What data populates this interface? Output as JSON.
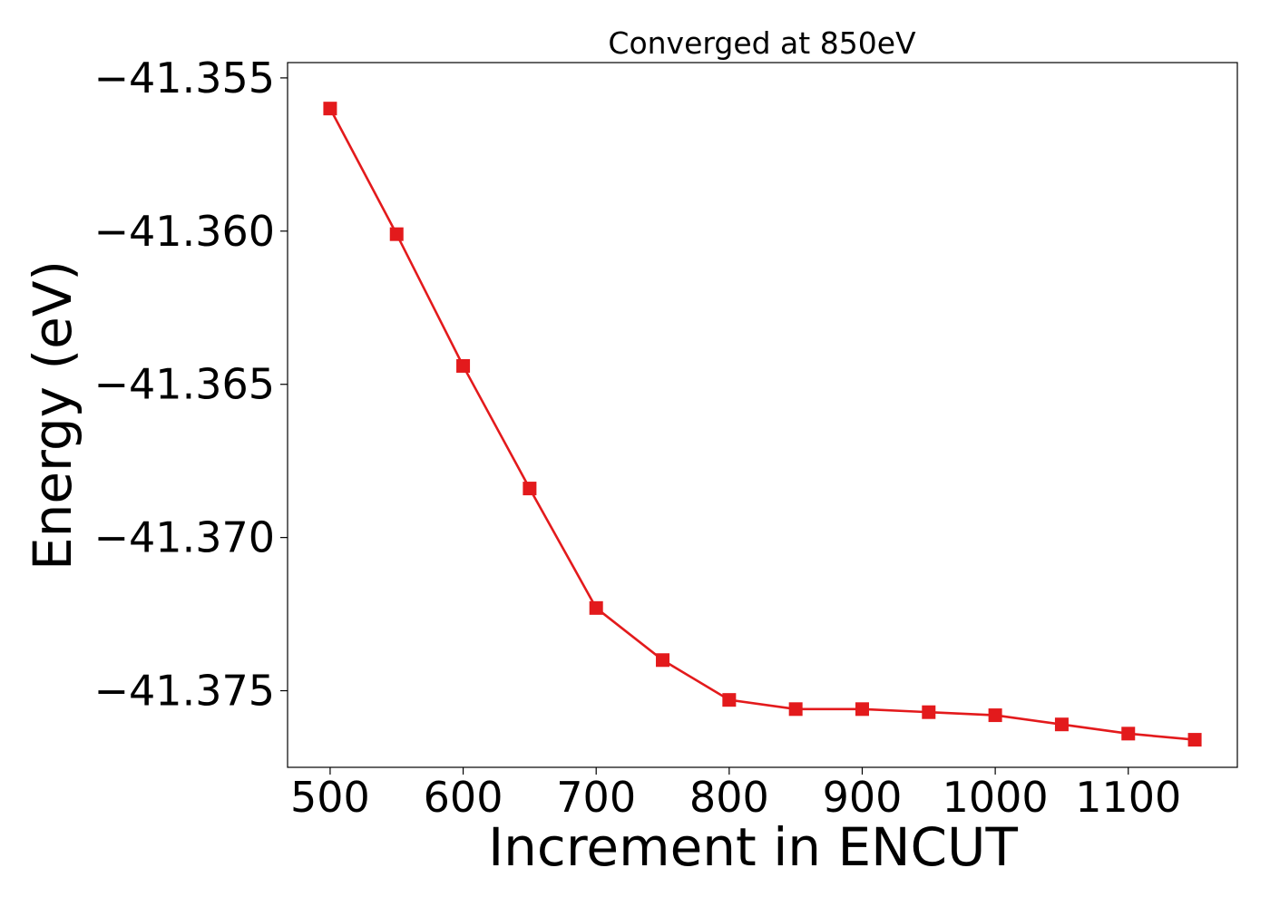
{
  "chart_data": {
    "type": "line",
    "title": "Converged at 850eV",
    "xlabel": "Increment in ENCUT",
    "ylabel": "Energy (eV)",
    "xlim": [
      468,
      1182
    ],
    "ylim": [
      -41.3775,
      -41.3545
    ],
    "xticks": [
      500,
      600,
      700,
      800,
      900,
      1000,
      1100
    ],
    "yticks": [
      -41.355,
      -41.36,
      -41.365,
      -41.37,
      -41.375
    ],
    "ytick_labels": [
      "−41.355",
      "−41.360",
      "−41.365",
      "−41.370",
      "−41.375"
    ],
    "grid": false,
    "legend": "none",
    "series": [
      {
        "color": "#e31a1c",
        "marker": "square",
        "x": [
          500,
          550,
          600,
          650,
          700,
          750,
          800,
          850,
          900,
          950,
          1000,
          1050,
          1100,
          1150
        ],
        "y": [
          -41.356,
          -41.3601,
          -41.3644,
          -41.3684,
          -41.3723,
          -41.374,
          -41.3753,
          -41.3756,
          -41.3756,
          -41.3757,
          -41.3758,
          -41.3761,
          -41.3764,
          -41.3766
        ]
      }
    ]
  }
}
